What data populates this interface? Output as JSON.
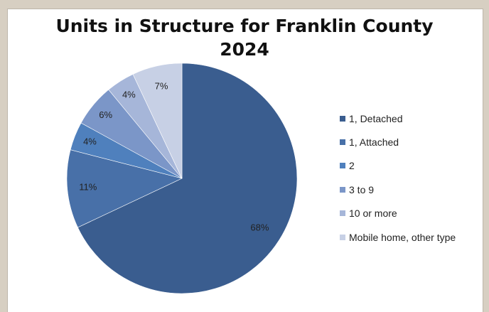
{
  "chart_data": {
    "type": "pie",
    "title": [
      "Units in Structure for Franklin County",
      "2024"
    ],
    "categories": [
      "1, Detached",
      "1, Attached",
      "2",
      "3 to 9",
      "10 or more",
      "Mobile home, other type"
    ],
    "values": [
      68,
      11,
      4,
      6,
      4,
      7
    ],
    "data_labels": [
      "68%",
      "11%",
      "4%",
      "6%",
      "4%",
      "7%"
    ],
    "colors": [
      "#3a5d8f",
      "#4870a8",
      "#4f80bd",
      "#7b96c8",
      "#a6b6d9",
      "#c7d0e5"
    ],
    "legend_position": "right"
  }
}
